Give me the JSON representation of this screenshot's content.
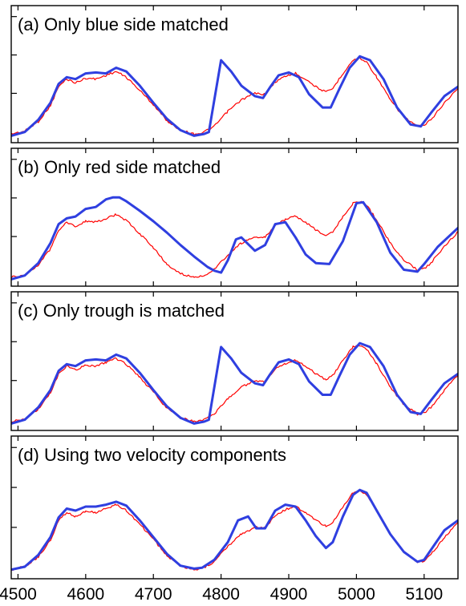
{
  "chart_data": {
    "type": "line",
    "x_tick_labels": [
      "4500",
      "4600",
      "4700",
      "4800",
      "4900",
      "5000",
      "5100"
    ],
    "x_ticks": [
      4500,
      4600,
      4700,
      4800,
      4900,
      5000,
      5100
    ],
    "xlim": [
      4490,
      5150
    ],
    "ylim": [
      0,
      1
    ],
    "grid": false,
    "colors": {
      "observed": "#ff0000",
      "model": "#2f3fe0"
    },
    "panels": [
      {
        "id": "a",
        "title": "(a) Only blue side matched",
        "series": [
          {
            "color": "#ff0000",
            "style": "thin-noisy",
            "x": [
              4490,
              4510,
              4530,
              4548,
              4560,
              4572,
              4585,
              4600,
              4615,
              4630,
              4645,
              4660,
              4680,
              4700,
              4720,
              4740,
              4760,
              4772,
              4790,
              4810,
              4830,
              4850,
              4865,
              4880,
              4895,
              4910,
              4925,
              4940,
              4955,
              4965,
              4980,
              4995,
              5005,
              5015,
              5030,
              5050,
              5070,
              5090,
              5100,
              5110,
              5130,
              5150
            ],
            "y": [
              0.02,
              0.05,
              0.15,
              0.32,
              0.52,
              0.6,
              0.56,
              0.61,
              0.6,
              0.64,
              0.68,
              0.62,
              0.48,
              0.33,
              0.16,
              0.06,
              0.02,
              0.03,
              0.1,
              0.26,
              0.38,
              0.45,
              0.44,
              0.57,
              0.63,
              0.66,
              0.6,
              0.52,
              0.46,
              0.5,
              0.66,
              0.8,
              0.82,
              0.78,
              0.62,
              0.38,
              0.2,
              0.1,
              0.11,
              0.17,
              0.35,
              0.5
            ]
          },
          {
            "color": "#2f3fe0",
            "style": "thick-smooth",
            "x": [
              4490,
              4510,
              4530,
              4548,
              4560,
              4572,
              4585,
              4600,
              4615,
              4630,
              4645,
              4660,
              4680,
              4700,
              4720,
              4740,
              4760,
              4775,
              4782,
              4800,
              4815,
              4830,
              4850,
              4862,
              4872,
              4885,
              4900,
              4915,
              4930,
              4950,
              4962,
              4975,
              4990,
              5005,
              5020,
              5040,
              5060,
              5080,
              5095,
              5110,
              5130,
              5150
            ],
            "y": [
              0.0,
              0.04,
              0.17,
              0.35,
              0.55,
              0.62,
              0.6,
              0.66,
              0.67,
              0.66,
              0.72,
              0.68,
              0.53,
              0.35,
              0.18,
              0.06,
              0.0,
              0.02,
              0.04,
              0.8,
              0.68,
              0.53,
              0.42,
              0.4,
              0.51,
              0.64,
              0.67,
              0.62,
              0.44,
              0.3,
              0.3,
              0.5,
              0.72,
              0.84,
              0.8,
              0.6,
              0.3,
              0.12,
              0.1,
              0.24,
              0.42,
              0.52
            ]
          }
        ]
      },
      {
        "id": "b",
        "title": "(b) Only red side matched",
        "series": [
          {
            "color": "#ff0000",
            "style": "thin-noisy",
            "x": [
              4490,
              4510,
              4530,
              4548,
              4560,
              4572,
              4585,
              4600,
              4615,
              4630,
              4645,
              4660,
              4680,
              4700,
              4720,
              4740,
              4760,
              4772,
              4790,
              4810,
              4830,
              4850,
              4865,
              4880,
              4895,
              4910,
              4925,
              4940,
              4955,
              4965,
              4980,
              4995,
              5005,
              5015,
              5030,
              5050,
              5070,
              5090,
              5100,
              5110,
              5130,
              5150
            ],
            "y": [
              0.02,
              0.05,
              0.15,
              0.32,
              0.52,
              0.6,
              0.56,
              0.61,
              0.6,
              0.64,
              0.68,
              0.62,
              0.48,
              0.33,
              0.16,
              0.06,
              0.02,
              0.03,
              0.1,
              0.26,
              0.38,
              0.45,
              0.44,
              0.57,
              0.63,
              0.66,
              0.6,
              0.52,
              0.46,
              0.5,
              0.66,
              0.8,
              0.82,
              0.78,
              0.62,
              0.38,
              0.2,
              0.1,
              0.11,
              0.17,
              0.35,
              0.5
            ]
          },
          {
            "color": "#2f3fe0",
            "style": "thick-smooth",
            "x": [
              4490,
              4510,
              4530,
              4548,
              4560,
              4572,
              4585,
              4600,
              4615,
              4630,
              4640,
              4650,
              4660,
              4680,
              4700,
              4720,
              4740,
              4760,
              4780,
              4790,
              4800,
              4810,
              4822,
              4830,
              4850,
              4865,
              4880,
              4895,
              4910,
              4925,
              4940,
              4960,
              4980,
              5000,
              5010,
              5030,
              5050,
              5070,
              5090,
              5100,
              5120,
              5150
            ],
            "y": [
              0.0,
              0.04,
              0.17,
              0.38,
              0.58,
              0.64,
              0.66,
              0.74,
              0.76,
              0.84,
              0.86,
              0.86,
              0.82,
              0.72,
              0.61,
              0.49,
              0.36,
              0.24,
              0.13,
              0.09,
              0.07,
              0.2,
              0.42,
              0.44,
              0.3,
              0.36,
              0.58,
              0.6,
              0.44,
              0.26,
              0.17,
              0.16,
              0.4,
              0.8,
              0.81,
              0.6,
              0.28,
              0.1,
              0.08,
              0.16,
              0.34,
              0.54
            ]
          }
        ]
      },
      {
        "id": "c",
        "title": "(c) Only trough is matched",
        "series": [
          {
            "color": "#ff0000",
            "style": "thin-noisy",
            "x": [
              4490,
              4510,
              4530,
              4548,
              4560,
              4572,
              4585,
              4600,
              4615,
              4630,
              4645,
              4660,
              4680,
              4700,
              4720,
              4740,
              4760,
              4772,
              4790,
              4810,
              4830,
              4850,
              4865,
              4880,
              4895,
              4910,
              4925,
              4940,
              4955,
              4965,
              4980,
              4995,
              5005,
              5015,
              5030,
              5050,
              5070,
              5090,
              5100,
              5110,
              5130,
              5150
            ],
            "y": [
              0.02,
              0.05,
              0.15,
              0.32,
              0.52,
              0.6,
              0.56,
              0.61,
              0.6,
              0.64,
              0.68,
              0.62,
              0.48,
              0.33,
              0.16,
              0.06,
              0.02,
              0.03,
              0.1,
              0.26,
              0.38,
              0.45,
              0.44,
              0.57,
              0.63,
              0.66,
              0.6,
              0.52,
              0.46,
              0.5,
              0.66,
              0.8,
              0.82,
              0.78,
              0.62,
              0.38,
              0.2,
              0.1,
              0.11,
              0.17,
              0.35,
              0.5
            ]
          },
          {
            "color": "#2f3fe0",
            "style": "thick-smooth",
            "x": [
              4490,
              4510,
              4530,
              4548,
              4560,
              4572,
              4585,
              4600,
              4615,
              4630,
              4645,
              4660,
              4680,
              4700,
              4720,
              4740,
              4760,
              4775,
              4782,
              4800,
              4815,
              4830,
              4850,
              4862,
              4872,
              4885,
              4900,
              4915,
              4930,
              4950,
              4962,
              4975,
              4990,
              5005,
              5020,
              5040,
              5060,
              5080,
              5095,
              5110,
              5130,
              5150
            ],
            "y": [
              0.0,
              0.04,
              0.17,
              0.35,
              0.55,
              0.62,
              0.6,
              0.66,
              0.67,
              0.66,
              0.72,
              0.68,
              0.53,
              0.35,
              0.18,
              0.06,
              0.0,
              0.02,
              0.04,
              0.8,
              0.68,
              0.53,
              0.42,
              0.4,
              0.51,
              0.64,
              0.67,
              0.62,
              0.44,
              0.3,
              0.3,
              0.5,
              0.72,
              0.84,
              0.8,
              0.6,
              0.3,
              0.12,
              0.1,
              0.24,
              0.42,
              0.52
            ]
          }
        ]
      },
      {
        "id": "d",
        "title": "(d) Using two velocity components",
        "series": [
          {
            "color": "#ff0000",
            "style": "thin-noisy",
            "x": [
              4490,
              4510,
              4530,
              4548,
              4560,
              4572,
              4585,
              4600,
              4615,
              4630,
              4645,
              4660,
              4680,
              4700,
              4720,
              4740,
              4760,
              4772,
              4790,
              4810,
              4830,
              4850,
              4865,
              4880,
              4895,
              4910,
              4925,
              4940,
              4955,
              4965,
              4980,
              4995,
              5005,
              5015,
              5030,
              5050,
              5070,
              5090,
              5100,
              5110,
              5130,
              5150
            ],
            "y": [
              0.02,
              0.05,
              0.15,
              0.32,
              0.52,
              0.6,
              0.56,
              0.61,
              0.6,
              0.64,
              0.68,
              0.62,
              0.48,
              0.33,
              0.16,
              0.06,
              0.02,
              0.03,
              0.1,
              0.26,
              0.38,
              0.45,
              0.44,
              0.57,
              0.63,
              0.66,
              0.6,
              0.52,
              0.46,
              0.5,
              0.66,
              0.8,
              0.82,
              0.78,
              0.62,
              0.38,
              0.2,
              0.1,
              0.11,
              0.17,
              0.35,
              0.5
            ]
          },
          {
            "color": "#2f3fe0",
            "style": "thick-smooth",
            "x": [
              4490,
              4510,
              4530,
              4548,
              4560,
              4572,
              4585,
              4600,
              4615,
              4630,
              4645,
              4660,
              4680,
              4700,
              4720,
              4740,
              4760,
              4772,
              4790,
              4810,
              4825,
              4840,
              4852,
              4865,
              4880,
              4895,
              4910,
              4925,
              4940,
              4955,
              4965,
              4980,
              4995,
              5005,
              5015,
              5030,
              5050,
              5070,
              5090,
              5100,
              5110,
              5130,
              5150
            ],
            "y": [
              0.02,
              0.05,
              0.17,
              0.35,
              0.55,
              0.64,
              0.62,
              0.66,
              0.66,
              0.68,
              0.71,
              0.67,
              0.52,
              0.35,
              0.18,
              0.06,
              0.03,
              0.04,
              0.12,
              0.3,
              0.52,
              0.56,
              0.44,
              0.44,
              0.62,
              0.68,
              0.66,
              0.52,
              0.36,
              0.24,
              0.3,
              0.56,
              0.78,
              0.83,
              0.8,
              0.62,
              0.38,
              0.2,
              0.1,
              0.12,
              0.22,
              0.42,
              0.52
            ]
          }
        ]
      }
    ]
  }
}
